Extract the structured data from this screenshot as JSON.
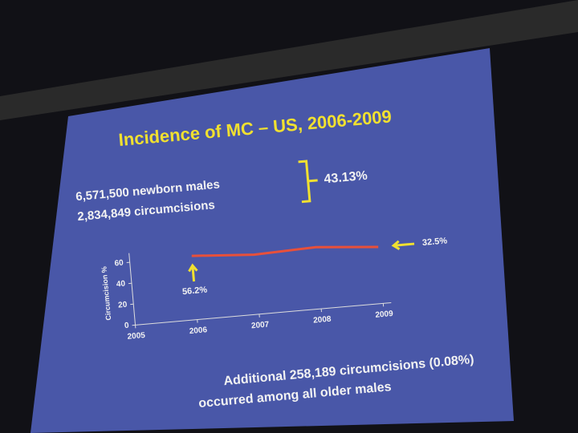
{
  "slide": {
    "title": "Incidence of MC – US, 2006-2009",
    "bullets": [
      "6,571,500 newborn males",
      "2,834,849 circumcisions"
    ],
    "bracket_label": "43.13%",
    "note_lines": [
      "Additional 258,189 circumcisions (0.08%)",
      "occurred among all older males"
    ]
  },
  "chart_data": {
    "type": "line",
    "ylabel": "Circumcision %",
    "x": [
      2006,
      2007,
      2008,
      2009
    ],
    "series": [
      {
        "name": "Circumcision %",
        "color": "#e8503a",
        "values": [
          61,
          57,
          59,
          54
        ]
      }
    ],
    "xlim": [
      2005,
      2009
    ],
    "xticks": [
      2005,
      2006,
      2007,
      2008,
      2009
    ],
    "ylim": [
      0,
      65
    ],
    "yticks": [
      0,
      20,
      40,
      60
    ],
    "annotations": [
      "56.2%",
      "32.5%"
    ]
  }
}
